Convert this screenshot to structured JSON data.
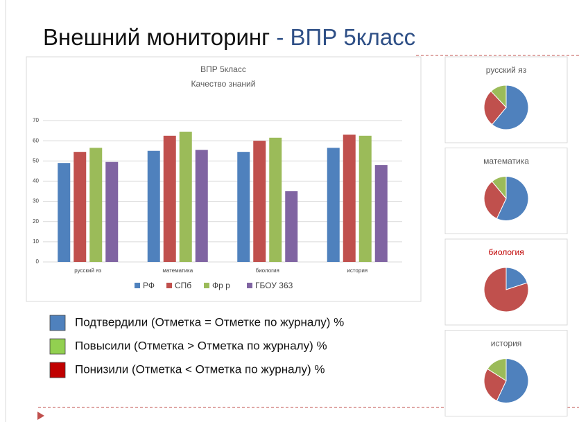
{
  "slide_title": {
    "main": "Внешний мониторинг",
    "accent": "- ВПР 5класс"
  },
  "legend": [
    {
      "label": "Подтвердили (Отметка = Отметке по журналу) %",
      "color": "#4f81bd"
    },
    {
      "label": "Повысили (Отметка > Отметка по журналу) %",
      "color": "#92d050"
    },
    {
      "label": "Понизили (Отметка < Отметка по журналу) %",
      "color": "#c00000"
    }
  ],
  "chart_data": [
    {
      "type": "bar",
      "title": "ВПР 5класс",
      "subtitle": "Качество знаний",
      "categories": [
        "русский яз",
        "математика",
        "биология",
        "история"
      ],
      "series": [
        {
          "name": "РФ",
          "color": "#4f81bd",
          "values": [
            49,
            55,
            54.5,
            56.5
          ]
        },
        {
          "name": "СПб",
          "color": "#c0504d",
          "values": [
            54.5,
            62.5,
            60,
            63
          ]
        },
        {
          "name": "Фр р",
          "color": "#9bbb59",
          "values": [
            56.5,
            64.5,
            61.5,
            62.5
          ]
        },
        {
          "name": "ГБОУ 363",
          "color": "#8064a2",
          "values": [
            49.5,
            55.5,
            35,
            48
          ]
        }
      ],
      "ylim": [
        0,
        70
      ],
      "yticks": [
        0,
        10,
        20,
        30,
        40,
        50,
        60,
        70
      ],
      "grid": true,
      "legend": "bottom"
    },
    {
      "type": "pie",
      "title": "русский яз",
      "title_color": "#595959",
      "values": [
        61,
        27,
        12
      ],
      "colors": [
        "#4f81bd",
        "#c0504d",
        "#9bbb59"
      ]
    },
    {
      "type": "pie",
      "title": "математика",
      "title_color": "#595959",
      "values": [
        57,
        32,
        11
      ],
      "colors": [
        "#4f81bd",
        "#c0504d",
        "#9bbb59"
      ]
    },
    {
      "type": "pie",
      "title": "биология",
      "title_color": "#c00000",
      "values": [
        20,
        80,
        0
      ],
      "colors": [
        "#4f81bd",
        "#c0504d",
        "#9bbb59"
      ]
    },
    {
      "type": "pie",
      "title": "история",
      "title_color": "#595959",
      "values": [
        57,
        27,
        16
      ],
      "colors": [
        "#4f81bd",
        "#c0504d",
        "#9bbb59"
      ]
    }
  ]
}
